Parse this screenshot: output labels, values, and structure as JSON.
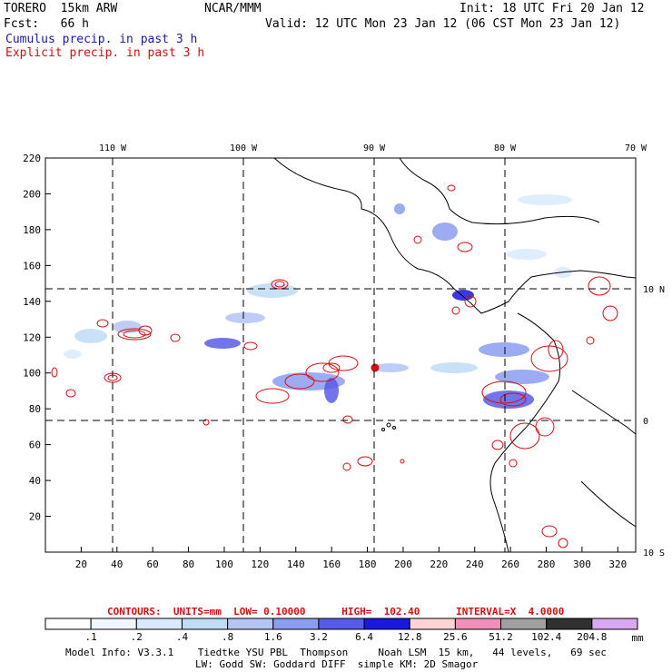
{
  "header": {
    "model": "TORERO  15km ARW",
    "org": "NCAR/MMM",
    "init": "Init: 18 UTC Fri 20 Jan 12",
    "fcst": "Fcst:   66 h",
    "valid": "Valid: 12 UTC Mon 23 Jan 12 (06 CST Mon 23 Jan 12)",
    "legend_cumulus": "Cumulus precip. in past 3 h",
    "legend_explicit": "Explicit precip. in past 3 h"
  },
  "map": {
    "x_ticks": [
      "20",
      "40",
      "60",
      "80",
      "100",
      "120",
      "140",
      "160",
      "180",
      "200",
      "220",
      "240",
      "260",
      "280",
      "300",
      "320"
    ],
    "y_ticks": [
      "20",
      "40",
      "60",
      "80",
      "100",
      "120",
      "140",
      "160",
      "180",
      "200",
      "220"
    ],
    "lon_labels": [
      "110 W",
      "100 W",
      "90 W",
      "80 W",
      "70 W"
    ],
    "lat_labels": [
      "10 N",
      "0",
      "10 S"
    ]
  },
  "contours": {
    "text": "CONTOURS:  UNITS=mm  LOW= 0.10000      HIGH=  102.40      INTERVAL=X  4.0000"
  },
  "colorbar": {
    "unit": "mm",
    "labels": [
      ".1",
      ".2",
      ".4",
      ".8",
      "1.6",
      "3.2",
      "6.4",
      "12.8",
      "25.6",
      "51.2",
      "102.4",
      "204.8"
    ],
    "colors": [
      "#ffffff",
      "#f0f6ff",
      "#d8eaff",
      "#c0dcf4",
      "#b4c4f4",
      "#8c9cf0",
      "#5a5ae8",
      "#1818e0",
      "#ffd4d4",
      "#f090b8",
      "#a0a0a0",
      "#303030",
      "#d8a8f0"
    ]
  },
  "footer": {
    "line1": "Model Info: V3.3.1    Tiedtke YSU PBL  Thompson     Noah LSM  15 km,   44 levels,   69 sec",
    "line2": "LW: Godd SW: Goddard DIFF  simple KM: 2D Smagor"
  }
}
